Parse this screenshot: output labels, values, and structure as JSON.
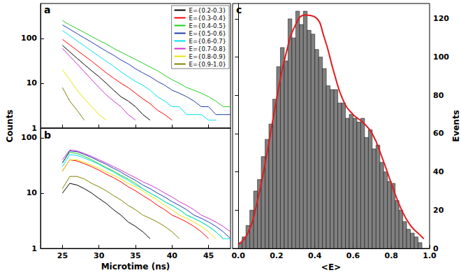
{
  "chart_data": [
    {
      "type": "line",
      "title": "a",
      "ylabel": "Counts",
      "log": "y",
      "legend": "upper right",
      "tick_labels": "y",
      "grid": false,
      "xlim": [
        22,
        48
      ],
      "xticks": [
        25,
        30,
        35,
        40,
        45
      ],
      "ylim": [
        1,
        600
      ],
      "yticks": [
        1,
        10,
        100
      ],
      "x": [
        25,
        26,
        27,
        28,
        29,
        30,
        31,
        32,
        33,
        34,
        35,
        36,
        37,
        38,
        39,
        40,
        41,
        42,
        43,
        44,
        45,
        46,
        47,
        48
      ],
      "series": [
        {
          "name": "E={0.2-0.3}",
          "color": "#000000",
          "values": [
            70,
            50,
            36,
            26,
            19,
            14,
            10,
            7,
            5,
            4,
            3,
            2,
            1.5,
            null,
            null,
            null,
            null,
            null,
            null,
            null,
            null,
            null,
            null,
            null
          ]
        },
        {
          "name": "E={0.3-0.4}",
          "color": "#ff0000",
          "values": [
            95,
            72,
            54,
            41,
            31,
            23,
            17,
            13,
            10,
            8,
            6,
            4.5,
            3.5,
            2.5,
            2,
            1.5,
            null,
            null,
            null,
            null,
            null,
            null,
            null,
            null
          ]
        },
        {
          "name": "E={0.4-0.5}",
          "color": "#22cc22",
          "values": [
            250,
            200,
            165,
            135,
            110,
            90,
            75,
            60,
            50,
            41,
            34,
            28,
            23,
            19,
            15,
            12,
            10,
            8,
            7,
            6,
            5,
            4,
            3,
            3
          ]
        },
        {
          "name": "E={0.5-0.6}",
          "color": "#1e3ca8",
          "values": [
            200,
            160,
            128,
            102,
            82,
            65,
            52,
            42,
            33,
            27,
            21,
            17,
            14,
            11,
            9,
            7,
            6,
            5,
            4,
            3,
            3,
            2,
            2,
            2
          ]
        },
        {
          "name": "E={0.6-0.7}",
          "color": "#00e0ee",
          "values": [
            150,
            115,
            88,
            68,
            52,
            40,
            31,
            24,
            18,
            14,
            11,
            9,
            7,
            5,
            4,
            3,
            3,
            2,
            2,
            2,
            1.5,
            1.5,
            null,
            null
          ]
        },
        {
          "name": "E={0.7-0.8}",
          "color": "#cc33cc",
          "values": [
            60,
            40,
            27,
            18,
            12,
            8,
            5.5,
            4,
            3,
            2,
            1.5,
            null,
            null,
            null,
            null,
            null,
            null,
            null,
            null,
            null,
            null,
            null,
            null,
            null
          ]
        },
        {
          "name": "E={0.8-0.9}",
          "color": "#e6e600",
          "values": [
            20,
            12,
            7,
            4.5,
            3,
            2,
            1.5,
            null,
            null,
            null,
            null,
            null,
            null,
            null,
            null,
            null,
            null,
            null,
            null,
            null,
            null,
            null,
            null,
            null
          ]
        },
        {
          "name": "E={0.9-1.0}",
          "color": "#808000",
          "values": [
            8,
            4,
            2.5,
            1.5,
            null,
            null,
            null,
            null,
            null,
            null,
            null,
            null,
            null,
            null,
            null,
            null,
            null,
            null,
            null,
            null,
            null,
            null,
            null,
            null
          ]
        }
      ]
    },
    {
      "type": "line",
      "title": "b",
      "xlabel": "Microtime (ns)",
      "log": "y",
      "grid": false,
      "xlim": [
        22,
        48
      ],
      "xticks": [
        25,
        30,
        35,
        40,
        45
      ],
      "ylim": [
        1,
        150
      ],
      "yticks": [
        1,
        10,
        100
      ],
      "x": [
        25,
        26,
        27,
        28,
        29,
        30,
        31,
        32,
        33,
        34,
        35,
        36,
        37,
        38,
        39,
        40,
        41,
        42,
        43,
        44,
        45,
        46,
        47,
        48
      ],
      "series": [
        {
          "name": "E={0.2-0.3}",
          "color": "#000000",
          "values": [
            10,
            15,
            14,
            12,
            10,
            8,
            6.5,
            5,
            4,
            3,
            2.5,
            2,
            1.5,
            null,
            null,
            null,
            null,
            null,
            null,
            null,
            null,
            null,
            null,
            null
          ]
        },
        {
          "name": "E={0.3-0.4}",
          "color": "#ff0000",
          "values": [
            25,
            40,
            38,
            34,
            30,
            26,
            22,
            19,
            16,
            13,
            11,
            9,
            7.5,
            6,
            5,
            4,
            3.5,
            3,
            2.5,
            2,
            1.5,
            null,
            null,
            null
          ]
        },
        {
          "name": "E={0.4-0.5}",
          "color": "#22cc22",
          "values": [
            35,
            55,
            52,
            46,
            40,
            34,
            29,
            25,
            21,
            18,
            15,
            12,
            10,
            8.5,
            7,
            6,
            5,
            4,
            3.5,
            3,
            2.5,
            2,
            1.5,
            null
          ]
        },
        {
          "name": "E={0.5-0.6}",
          "color": "#1e3ca8",
          "values": [
            35,
            58,
            56,
            50,
            44,
            38,
            33,
            28,
            24,
            20,
            17,
            14,
            12,
            10,
            8.5,
            7,
            6,
            5,
            4,
            3.5,
            3,
            2.5,
            2,
            1.5
          ]
        },
        {
          "name": "E={0.6-0.7}",
          "color": "#00e0ee",
          "values": [
            30,
            50,
            48,
            43,
            38,
            33,
            28,
            24,
            20,
            17,
            14,
            12,
            10,
            8.5,
            7,
            6,
            5,
            4,
            3.5,
            3,
            2.5,
            2,
            1.5,
            1.5
          ]
        },
        {
          "name": "E={0.7-0.8}",
          "color": "#cc33cc",
          "values": [
            40,
            60,
            58,
            52,
            46,
            40,
            35,
            30,
            26,
            22,
            19,
            16,
            14,
            12,
            10,
            8.5,
            7,
            6,
            5,
            4,
            3.5,
            3,
            2.5,
            2
          ]
        },
        {
          "name": "E={0.8-0.9}",
          "color": "#e6e600",
          "values": [
            25,
            40,
            40,
            36,
            32,
            28,
            24,
            21,
            18,
            15,
            13,
            11,
            9,
            7.5,
            6,
            5,
            4,
            3.5,
            3,
            2.5,
            2,
            1.5,
            null,
            null
          ]
        },
        {
          "name": "E={0.9-1.0}",
          "color": "#808000",
          "values": [
            12,
            20,
            20,
            18,
            15,
            13,
            11,
            9,
            7.5,
            6,
            5,
            4,
            3.5,
            3,
            2.5,
            2,
            1.5,
            null,
            null,
            null,
            null,
            null,
            null,
            null
          ]
        }
      ]
    },
    {
      "type": "histogram",
      "title": "c",
      "xlabel": "<E>",
      "ylabel": "Events",
      "grid": false,
      "color": "#808080",
      "xlim": [
        -0.03,
        1.0
      ],
      "xticks": [
        {
          "value": 0,
          "label": "0.0"
        },
        {
          "value": 0.2,
          "label": "0.2"
        },
        {
          "value": 0.4,
          "label": "0.4"
        },
        {
          "value": 0.6,
          "label": "0.6"
        },
        {
          "value": 0.8,
          "label": "0.8"
        },
        {
          "value": 1.0,
          "label": "1.0"
        }
      ],
      "ylim": [
        0,
        128
      ],
      "yticks": [
        0,
        20,
        40,
        60,
        80,
        100,
        120
      ],
      "bins": [
        0,
        0.02,
        0.04,
        0.06,
        0.08,
        0.1,
        0.12,
        0.14,
        0.16,
        0.18,
        0.2,
        0.22,
        0.24,
        0.26,
        0.28,
        0.3,
        0.32,
        0.34,
        0.36,
        0.38,
        0.4,
        0.42,
        0.44,
        0.46,
        0.48,
        0.5,
        0.52,
        0.54,
        0.56,
        0.58,
        0.6,
        0.62,
        0.64,
        0.66,
        0.68,
        0.7,
        0.72,
        0.74,
        0.76,
        0.78,
        0.8,
        0.82,
        0.84,
        0.86,
        0.88,
        0.9,
        0.92,
        0.94,
        0.96
      ],
      "values": [
        3,
        6,
        12,
        20,
        30,
        36,
        48,
        57,
        65,
        78,
        95,
        105,
        98,
        120,
        110,
        124,
        117,
        124,
        114,
        112,
        104,
        100,
        94,
        85,
        83,
        83,
        76,
        76,
        68,
        70,
        68,
        66,
        68,
        58,
        62,
        52,
        54,
        45,
        40,
        35,
        34,
        25,
        20,
        14,
        10,
        8,
        6,
        3
      ],
      "line": {
        "color": "#e41a1c",
        "x": [
          0,
          0.05,
          0.1,
          0.15,
          0.2,
          0.25,
          0.3,
          0.35,
          0.4,
          0.45,
          0.5,
          0.55,
          0.6,
          0.65,
          0.7,
          0.75,
          0.8,
          0.85,
          0.9,
          0.95,
          0.97
        ],
        "values": [
          2,
          8,
          25,
          50,
          78,
          102,
          117,
          122,
          121,
          110,
          92,
          77,
          70,
          66,
          60,
          48,
          34,
          21,
          12,
          7,
          5
        ]
      }
    }
  ]
}
